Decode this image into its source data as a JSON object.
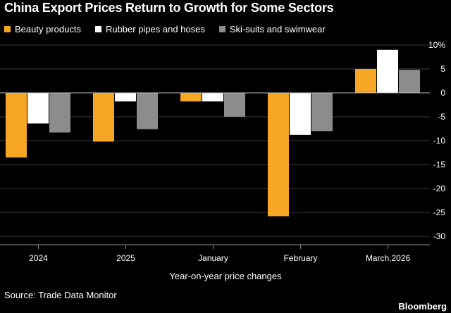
{
  "chart_data": {
    "type": "bar",
    "title": "China Export Prices Return to Growth for Some Sectors",
    "categories": [
      "2024",
      "2025",
      "January",
      "February",
      "March,2026"
    ],
    "series": [
      {
        "name": "Beauty products",
        "color": "#f5a623",
        "values": [
          -13.5,
          -10.2,
          -1.8,
          -25.8,
          5.0
        ]
      },
      {
        "name": "Rubber pipes and hoses",
        "color": "#ffffff",
        "values": [
          -6.4,
          -1.8,
          -1.8,
          -8.8,
          9.0
        ]
      },
      {
        "name": "Ski-suits and swimwear",
        "color": "#8c8c8c",
        "values": [
          -8.3,
          -7.6,
          -5.0,
          -8.0,
          4.8
        ]
      }
    ],
    "y_ticks": [
      "10%",
      "5",
      "0",
      "-5",
      "-10",
      "-15",
      "-20",
      "-25",
      "-30"
    ],
    "y_tick_values": [
      10,
      5,
      0,
      -5,
      -10,
      -15,
      -20,
      -25,
      -30
    ],
    "ylim": [
      -30,
      10
    ],
    "xlabel": "Year-on-year price changes",
    "ylabel": "",
    "grid": true
  },
  "footer": {
    "source": "Source: Trade Data Monitor",
    "brand": "Bloomberg"
  }
}
